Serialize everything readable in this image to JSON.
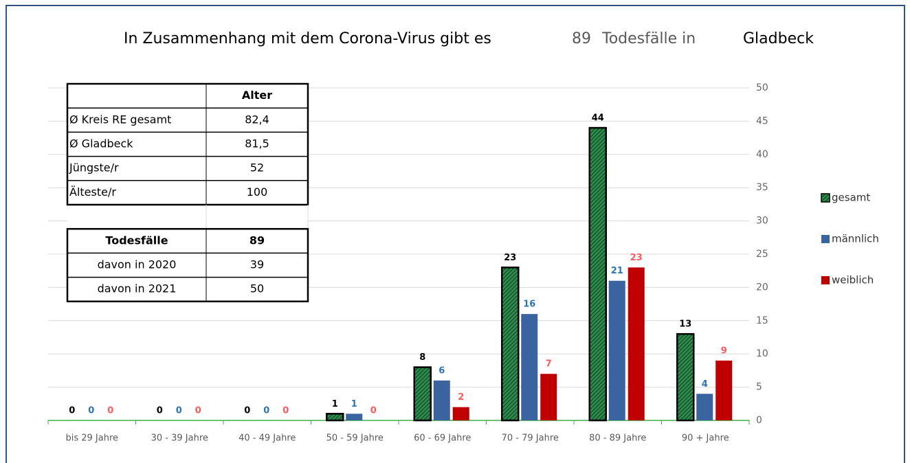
{
  "chart_data": {
    "type": "bar",
    "title": "In Zusammenhang mit dem Corona-Virus gibt es",
    "title_count": "89",
    "title_mid": "Todesfälle in",
    "title_place": "Gladbeck",
    "categories": [
      "bis 29 Jahre",
      "30 - 39 Jahre",
      "40 - 49 Jahre",
      "50 - 59 Jahre",
      "60 - 69 Jahre",
      "70 - 79 Jahre",
      "80 - 89 Jahre",
      "90 + Jahre"
    ],
    "series": [
      {
        "name": "gesamt",
        "color": "#2e8b4e",
        "label_color": "#000000",
        "hatched": true,
        "values": [
          0,
          0,
          0,
          1,
          8,
          23,
          44,
          13
        ]
      },
      {
        "name": "männlich",
        "color": "#3a64a0",
        "label_color": "#2e75b6",
        "values": [
          0,
          0,
          0,
          1,
          6,
          16,
          21,
          4
        ]
      },
      {
        "name": "weiblich",
        "color": "#c00000",
        "label_color": "#ff5b5b",
        "values": [
          0,
          0,
          0,
          0,
          2,
          7,
          23,
          9
        ]
      }
    ],
    "ylim": [
      0,
      50
    ],
    "yticks": [
      0,
      5,
      10,
      15,
      20,
      25,
      30,
      35,
      40,
      45,
      50
    ],
    "grid": true,
    "legend": "right"
  },
  "table_age": {
    "header": "Alter",
    "rows": [
      [
        "Ø Kreis RE gesamt",
        "82,4"
      ],
      [
        "Ø Gladbeck",
        "81,5"
      ],
      [
        "Jüngste/r",
        "52"
      ],
      [
        "Älteste/r",
        "100"
      ]
    ]
  },
  "table_deaths": {
    "header": [
      "Todesfälle",
      "89"
    ],
    "rows": [
      [
        "davon in 2020",
        "39"
      ],
      [
        "davon in 2021",
        "50"
      ]
    ]
  }
}
